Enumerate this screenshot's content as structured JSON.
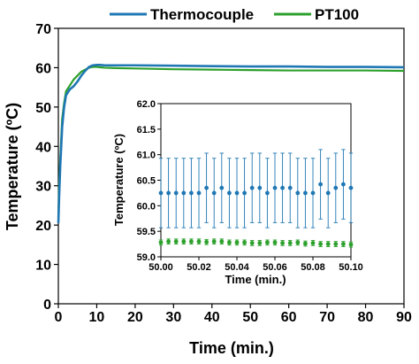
{
  "chart_data": [
    {
      "type": "line",
      "xlabel": "Time (min.)",
      "ylabel": "Temperature (ºC)",
      "xlim": [
        0,
        90
      ],
      "ylim": [
        0,
        70
      ],
      "x_ticks": [
        "0",
        "10",
        "20",
        "30",
        "40",
        "50",
        "60",
        "70",
        "80",
        "90"
      ],
      "y_ticks": [
        "0",
        "10",
        "20",
        "30",
        "40",
        "50",
        "60",
        "70"
      ],
      "legend_placement": "top",
      "colors": {
        "Thermocouple": "#1f77b4",
        "PT100": "#2ca02c"
      },
      "series": [
        {
          "name": "Thermocouple",
          "x": [
            0,
            0.2,
            0.5,
            0.8,
            1,
            1.5,
            2,
            3,
            4,
            5,
            6,
            7,
            8,
            9,
            10,
            11,
            12,
            15,
            20,
            30,
            40,
            50,
            60,
            70,
            80,
            90
          ],
          "y": [
            20.5,
            27,
            35,
            41,
            45,
            50,
            53,
            54.5,
            55.3,
            56.5,
            58,
            59.2,
            60.2,
            60.6,
            60.7,
            60.7,
            60.6,
            60.6,
            60.6,
            60.5,
            60.4,
            60.3,
            60.3,
            60.2,
            60.2,
            60.1
          ]
        },
        {
          "name": "PT100",
          "x": [
            0,
            0.2,
            0.5,
            0.8,
            1,
            1.5,
            2,
            3,
            4,
            5,
            6,
            7,
            8,
            9,
            10,
            11,
            12,
            15,
            20,
            30,
            40,
            50,
            60,
            70,
            80,
            90
          ],
          "y": [
            22,
            30,
            37,
            43,
            47,
            51,
            54,
            55.5,
            57,
            58,
            59,
            59.5,
            60,
            60.2,
            60.2,
            60.1,
            60,
            59.9,
            59.8,
            59.6,
            59.5,
            59.4,
            59.3,
            59.3,
            59.3,
            59.2
          ]
        }
      ]
    },
    {
      "type": "scatter",
      "xlabel": "Time (min.)",
      "ylabel": "Temperature (ºC)",
      "xlim": [
        50.0,
        50.1
      ],
      "ylim": [
        59.0,
        62.0
      ],
      "x_ticks": [
        "50.00",
        "50.02",
        "50.04",
        "50.06",
        "50.08",
        "50.10"
      ],
      "y_ticks": [
        "59.0",
        "59.5",
        "60.0",
        "60.5",
        "61.0",
        "61.5",
        "62.0"
      ],
      "error_bars": true,
      "series": [
        {
          "name": "Thermocouple",
          "x": [
            50.0,
            50.004,
            50.008,
            50.012,
            50.016,
            50.02,
            50.024,
            50.028,
            50.032,
            50.036,
            50.04,
            50.044,
            50.048,
            50.052,
            50.056,
            50.06,
            50.064,
            50.068,
            50.072,
            50.076,
            50.08,
            50.084,
            50.088,
            50.092,
            50.096,
            50.1
          ],
          "y": [
            60.25,
            60.25,
            60.25,
            60.25,
            60.25,
            60.25,
            60.35,
            60.25,
            60.35,
            60.25,
            60.25,
            60.25,
            60.35,
            60.35,
            60.25,
            60.35,
            60.35,
            60.35,
            60.25,
            60.25,
            60.25,
            60.42,
            60.25,
            60.35,
            60.42,
            60.35
          ],
          "error": [
            0.68,
            0.68,
            0.68,
            0.68,
            0.68,
            0.68,
            0.68,
            0.68,
            0.68,
            0.68,
            0.68,
            0.68,
            0.68,
            0.68,
            0.68,
            0.68,
            0.68,
            0.68,
            0.68,
            0.68,
            0.68,
            0.68,
            0.68,
            0.68,
            0.68,
            0.68
          ]
        },
        {
          "name": "PT100",
          "x": [
            50.0,
            50.004,
            50.008,
            50.012,
            50.016,
            50.02,
            50.024,
            50.028,
            50.032,
            50.036,
            50.04,
            50.044,
            50.048,
            50.052,
            50.056,
            50.06,
            50.064,
            50.068,
            50.072,
            50.076,
            50.08,
            50.084,
            50.088,
            50.092,
            50.096,
            50.1
          ],
          "y": [
            59.28,
            59.3,
            59.3,
            59.3,
            59.3,
            59.3,
            59.29,
            59.3,
            59.3,
            59.28,
            59.28,
            59.28,
            59.27,
            59.27,
            59.28,
            59.28,
            59.27,
            59.27,
            59.28,
            59.26,
            59.27,
            59.25,
            59.25,
            59.25,
            59.25,
            59.24
          ],
          "error": [
            0.05,
            0.05,
            0.05,
            0.05,
            0.05,
            0.05,
            0.05,
            0.05,
            0.05,
            0.05,
            0.05,
            0.05,
            0.05,
            0.05,
            0.05,
            0.05,
            0.05,
            0.05,
            0.05,
            0.05,
            0.05,
            0.05,
            0.05,
            0.05,
            0.05,
            0.05
          ]
        }
      ]
    }
  ]
}
